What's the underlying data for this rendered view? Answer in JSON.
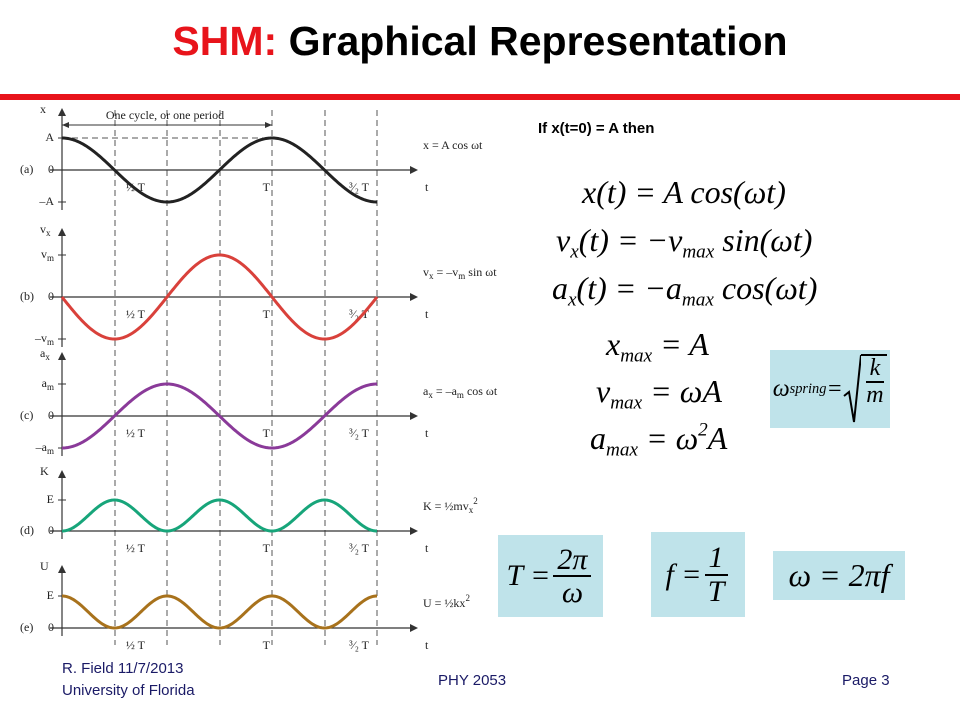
{
  "header": {
    "title_prefix": "SHM:",
    "title_rest": "Graphical Representation"
  },
  "figure": {
    "period_label": "One cycle, or one period",
    "panels": [
      {
        "letter": "(a)",
        "variable": [
          "x"
        ],
        "levels": [
          [
            "A"
          ],
          [
            "0"
          ],
          [
            "–A"
          ]
        ],
        "formula": [
          "x = A cos ωt"
        ],
        "t": "t",
        "ticks": [
          "½ T",
          "T",
          "³⁄₂ T"
        ]
      },
      {
        "letter": "(b)",
        "variable": [
          "v",
          {
            "sub": "x"
          }
        ],
        "levels": [
          [
            "v",
            {
              "sub": "m"
            }
          ],
          [
            "0"
          ],
          [
            "–v",
            {
              "sub": "m"
            }
          ]
        ],
        "formula": [
          "v",
          {
            "sub": "x"
          },
          " = –v",
          {
            "sub": "m"
          },
          " sin ωt"
        ],
        "t": "t",
        "ticks": [
          "½ T",
          "T",
          "³⁄₂ T"
        ]
      },
      {
        "letter": "(c)",
        "variable": [
          "a",
          {
            "sub": "x"
          }
        ],
        "levels": [
          [
            "a",
            {
              "sub": "m"
            }
          ],
          [
            "0"
          ],
          [
            "–a",
            {
              "sub": "m"
            }
          ]
        ],
        "formula": [
          "a",
          {
            "sub": "x"
          },
          " = –a",
          {
            "sub": "m"
          },
          " cos ωt"
        ],
        "t": "t",
        "ticks": [
          "½ T",
          "T",
          "³⁄₂ T"
        ]
      },
      {
        "letter": "(d)",
        "variable": [
          "K"
        ],
        "levels": [
          [
            "E"
          ],
          [
            "0"
          ]
        ],
        "formula": [
          "K = ½mv",
          {
            "sub": "x"
          },
          {
            "sup": "2"
          }
        ],
        "t": "t",
        "ticks": [
          "½ T",
          "T",
          "³⁄₂ T"
        ]
      },
      {
        "letter": "(e)",
        "variable": [
          "U"
        ],
        "levels": [
          [
            "E"
          ],
          [
            "0"
          ]
        ],
        "formula": [
          "U = ½kx",
          {
            "sup": "2"
          }
        ],
        "t": "t",
        "ticks": [
          "½ T",
          "T",
          "³⁄₂ T"
        ]
      }
    ]
  },
  "condition": "If x(t=0) = A then",
  "equations": [
    [
      "x(t) = A cos(ωt)"
    ],
    [
      "v",
      {
        "sub": "x"
      },
      "(t) = −v",
      {
        "sub": "max"
      },
      " sin(ωt)"
    ],
    [
      "a",
      {
        "sub": "x"
      },
      "(t) = −a",
      {
        "sub": "max"
      },
      " cos(ωt)"
    ],
    [
      "x",
      {
        "sub": "max"
      },
      " = A"
    ],
    [
      "v",
      {
        "sub": "max"
      },
      " = ωA"
    ],
    [
      "a",
      {
        "sub": "max"
      },
      " = ω",
      {
        "sup": "2"
      },
      "A"
    ]
  ],
  "boxes": [
    [
      "ω",
      {
        "sub": "spring"
      },
      " = ",
      {
        "sqrt": {
          "num": "k",
          "den": "m"
        }
      }
    ],
    [
      "T = ",
      {
        "num": "2π",
        "den": "ω"
      }
    ],
    [
      "f = ",
      {
        "num": "1",
        "den": "T"
      }
    ],
    [
      "ω = 2πf"
    ]
  ],
  "footer": {
    "author": "R. Field 11/7/2013",
    "institution": "University of Florida",
    "course": "PHY 2053",
    "page": "Page 3"
  }
}
